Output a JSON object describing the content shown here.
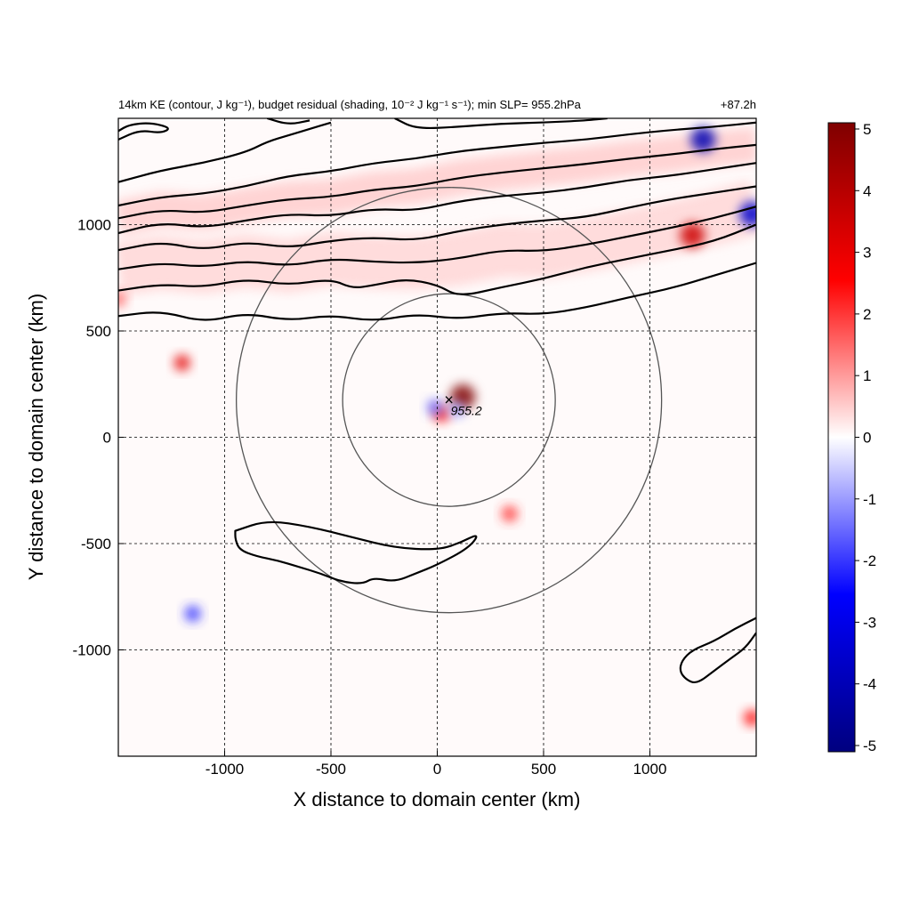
{
  "chart_data": {
    "type": "heatmap",
    "title_left": "14km KE (contour, J kg⁻¹), budget residual (shading, 10⁻² J kg⁻¹ s⁻¹); min SLP= 955.2hPa",
    "title_right": "+87.2h",
    "xlabel": "X distance to domain center (km)",
    "ylabel": "Y distance to domain center (km)",
    "xlim": [
      -1500,
      1500
    ],
    "ylim": [
      -1500,
      1500
    ],
    "x_ticks": [
      -1000,
      -500,
      0,
      500,
      1000
    ],
    "y_ticks": [
      -1000,
      -500,
      0,
      500,
      1000
    ],
    "x_tick_labels": [
      "-1000",
      "-500",
      "0",
      "500",
      "1000"
    ],
    "y_tick_labels": [
      "-1000",
      "-500",
      "0",
      "500",
      "1000"
    ],
    "grid": true,
    "colorbar": {
      "min": -5,
      "max": 5,
      "ticks": [
        5,
        4,
        3,
        2,
        1,
        0,
        -1,
        -2,
        -3,
        -4,
        -5
      ],
      "tick_labels": [
        "5",
        "4",
        "3",
        "2",
        "1",
        "0",
        "-1",
        "-2",
        "-3",
        "-4",
        "-5"
      ],
      "colormap": [
        "#00007f",
        "#0000ff",
        "#ffffff",
        "#ff0000",
        "#7f0000"
      ]
    },
    "storm_center": {
      "x": 55,
      "y": 175
    },
    "storm_label": "955.2",
    "range_rings_km": [
      500,
      1000
    ],
    "ring_center": {
      "x": 55,
      "y": 175
    },
    "shading_patches": [
      {
        "x": 120,
        "y": 190,
        "value": 5
      },
      {
        "x": 20,
        "y": 110,
        "value": 2.5
      },
      {
        "x": -10,
        "y": 140,
        "value": -1.5
      },
      {
        "x": 90,
        "y": 130,
        "value": -1
      },
      {
        "x": -1200,
        "y": 350,
        "value": 3
      },
      {
        "x": 340,
        "y": -360,
        "value": 2
      },
      {
        "x": -1150,
        "y": -830,
        "value": -2
      },
      {
        "x": 1250,
        "y": 1400,
        "value": -4
      },
      {
        "x": 1200,
        "y": 950,
        "value": 3.5
      },
      {
        "x": 1480,
        "y": 1050,
        "value": -3.5
      },
      {
        "x": -1500,
        "y": 650,
        "value": 1.5
      },
      {
        "x": 1480,
        "y": -1320,
        "value": 2.5
      }
    ],
    "ke_contours": [
      {
        "points": [
          [
            -1500,
            570
          ],
          [
            -1300,
            595
          ],
          [
            -1100,
            540
          ],
          [
            -900,
            585
          ],
          [
            -700,
            548
          ],
          [
            -500,
            575
          ],
          [
            -300,
            545
          ],
          [
            -100,
            580
          ],
          [
            100,
            555
          ],
          [
            300,
            585
          ],
          [
            500,
            578
          ],
          [
            700,
            610
          ],
          [
            900,
            658
          ],
          [
            1100,
            700
          ],
          [
            1300,
            760
          ],
          [
            1500,
            820
          ]
        ]
      },
      {
        "points": [
          [
            -1500,
            690
          ],
          [
            -1300,
            720
          ],
          [
            -1100,
            705
          ],
          [
            -900,
            745
          ],
          [
            -700,
            715
          ],
          [
            -500,
            745
          ],
          [
            -400,
            700
          ],
          [
            -300,
            715
          ],
          [
            -150,
            745
          ],
          [
            0,
            718
          ],
          [
            100,
            660
          ],
          [
            300,
            705
          ],
          [
            500,
            745
          ],
          [
            700,
            800
          ],
          [
            900,
            840
          ],
          [
            1100,
            880
          ],
          [
            1300,
            920
          ],
          [
            1500,
            1000
          ]
        ]
      },
      {
        "points": [
          [
            -1500,
            790
          ],
          [
            -1300,
            820
          ],
          [
            -1100,
            800
          ],
          [
            -900,
            830
          ],
          [
            -700,
            805
          ],
          [
            -500,
            840
          ],
          [
            -300,
            825
          ],
          [
            -100,
            820
          ],
          [
            100,
            840
          ],
          [
            300,
            880
          ],
          [
            500,
            875
          ],
          [
            700,
            905
          ],
          [
            900,
            945
          ],
          [
            1100,
            985
          ],
          [
            1300,
            1030
          ],
          [
            1500,
            1085
          ]
        ]
      },
      {
        "points": [
          [
            -1500,
            880
          ],
          [
            -1300,
            920
          ],
          [
            -1100,
            880
          ],
          [
            -900,
            920
          ],
          [
            -700,
            890
          ],
          [
            -500,
            925
          ],
          [
            -300,
            940
          ],
          [
            -100,
            925
          ],
          [
            100,
            970
          ],
          [
            300,
            1000
          ],
          [
            500,
            1020
          ],
          [
            700,
            1035
          ],
          [
            900,
            1080
          ],
          [
            1100,
            1120
          ],
          [
            1300,
            1150
          ],
          [
            1500,
            1180
          ]
        ]
      },
      {
        "points": [
          [
            -1500,
            960
          ],
          [
            -1300,
            1010
          ],
          [
            -1100,
            985
          ],
          [
            -900,
            1020
          ],
          [
            -700,
            1050
          ],
          [
            -500,
            1040
          ],
          [
            -300,
            1075
          ],
          [
            -100,
            1065
          ],
          [
            100,
            1110
          ],
          [
            300,
            1135
          ],
          [
            500,
            1150
          ],
          [
            700,
            1175
          ],
          [
            900,
            1210
          ],
          [
            1100,
            1230
          ],
          [
            1300,
            1260
          ],
          [
            1500,
            1290
          ]
        ]
      },
      {
        "points": [
          [
            -1500,
            1030
          ],
          [
            -1300,
            1070
          ],
          [
            -1100,
            1055
          ],
          [
            -900,
            1090
          ],
          [
            -700,
            1120
          ],
          [
            -500,
            1130
          ],
          [
            -300,
            1165
          ],
          [
            -100,
            1180
          ],
          [
            100,
            1220
          ],
          [
            300,
            1245
          ],
          [
            500,
            1265
          ],
          [
            700,
            1285
          ],
          [
            900,
            1310
          ],
          [
            1100,
            1330
          ],
          [
            1300,
            1355
          ],
          [
            1500,
            1375
          ]
        ]
      },
      {
        "points": [
          [
            -1500,
            1090
          ],
          [
            -1300,
            1130
          ],
          [
            -1100,
            1145
          ],
          [
            -900,
            1180
          ],
          [
            -700,
            1230
          ],
          [
            -500,
            1250
          ],
          [
            -300,
            1290
          ],
          [
            -100,
            1310
          ],
          [
            100,
            1345
          ],
          [
            300,
            1365
          ],
          [
            500,
            1385
          ],
          [
            700,
            1400
          ],
          [
            900,
            1425
          ],
          [
            1100,
            1445
          ],
          [
            1300,
            1460
          ],
          [
            1500,
            1480
          ]
        ]
      },
      {
        "points": [
          [
            -1500,
            1200
          ],
          [
            -1300,
            1255
          ],
          [
            -1100,
            1290
          ],
          [
            -900,
            1340
          ],
          [
            -800,
            1390
          ],
          [
            -700,
            1420
          ],
          [
            -600,
            1450
          ],
          [
            -500,
            1480
          ]
        ]
      },
      {
        "points": [
          [
            -800,
            1500
          ],
          [
            -700,
            1470
          ],
          [
            -600,
            1490
          ]
        ]
      },
      {
        "points": [
          [
            -200,
            1500
          ],
          [
            -100,
            1450
          ],
          [
            100,
            1460
          ],
          [
            300,
            1475
          ],
          [
            500,
            1480
          ],
          [
            700,
            1490
          ],
          [
            800,
            1500
          ]
        ]
      },
      {
        "points": [
          [
            -1500,
            1400
          ],
          [
            -1400,
            1445
          ],
          [
            -1300,
            1430
          ],
          [
            -1250,
            1455
          ],
          [
            -1350,
            1480
          ],
          [
            -1450,
            1470
          ],
          [
            -1500,
            1440
          ]
        ],
        "closed": false
      },
      {
        "points": [
          [
            -950,
            -440
          ],
          [
            -800,
            -390
          ],
          [
            -600,
            -420
          ],
          [
            -400,
            -470
          ],
          [
            -200,
            -520
          ],
          [
            0,
            -530
          ],
          [
            100,
            -500
          ],
          [
            200,
            -450
          ],
          [
            150,
            -520
          ],
          [
            0,
            -600
          ],
          [
            -100,
            -640
          ],
          [
            -200,
            -680
          ],
          [
            -300,
            -660
          ],
          [
            -350,
            -690
          ],
          [
            -450,
            -680
          ],
          [
            -550,
            -640
          ],
          [
            -650,
            -610
          ],
          [
            -750,
            -580
          ],
          [
            -850,
            -560
          ],
          [
            -930,
            -530
          ],
          [
            -950,
            -480
          ],
          [
            -950,
            -440
          ]
        ],
        "closed": true
      },
      {
        "points": [
          [
            1500,
            -850
          ],
          [
            1400,
            -900
          ],
          [
            1300,
            -960
          ],
          [
            1200,
            -1000
          ],
          [
            1150,
            -1050
          ],
          [
            1140,
            -1100
          ],
          [
            1170,
            -1140
          ],
          [
            1220,
            -1160
          ],
          [
            1300,
            -1100
          ],
          [
            1380,
            -1040
          ],
          [
            1450,
            -990
          ],
          [
            1500,
            -920
          ]
        ],
        "closed": false
      }
    ]
  }
}
